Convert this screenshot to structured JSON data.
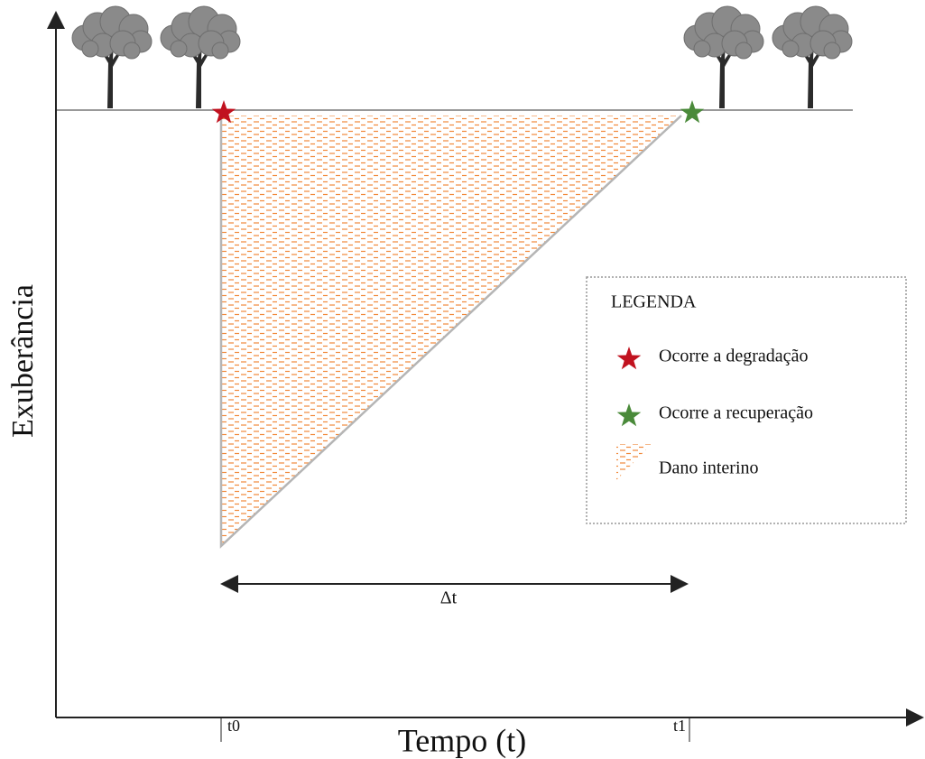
{
  "axes": {
    "y_label": "Exuberância",
    "x_label": "Tempo (t)"
  },
  "ticks": [
    "t0",
    "t1"
  ],
  "interval": "Δt",
  "legend": {
    "title": "LEGENDA",
    "items": [
      "Ocorre a degradação",
      "Ocorre a recuperação",
      "Dano interino"
    ]
  }
}
